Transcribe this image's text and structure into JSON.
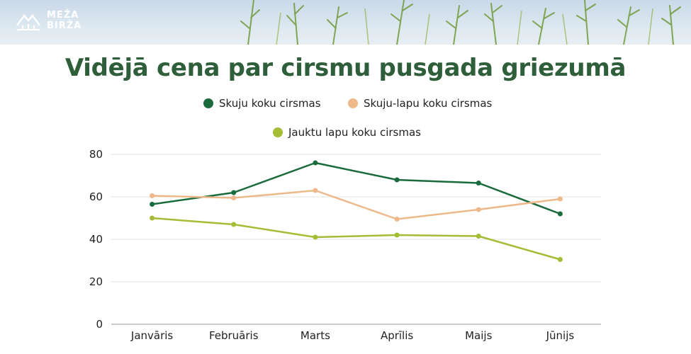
{
  "brand": {
    "line1": "MEŽA",
    "line2": "BIRŽA"
  },
  "colors": {
    "title": "#2e5e3a",
    "grid": "#e3e3e3",
    "axis": "#9a9a9a"
  },
  "chart_data": {
    "type": "line",
    "title": "Vidējā cena par cirsmu pusgada griezumā",
    "categories": [
      "Janvāris",
      "Februāris",
      "Marts",
      "Aprīlis",
      "Maijs",
      "Jūnijs"
    ],
    "ylim": [
      0,
      80
    ],
    "yticks": [
      0,
      20,
      40,
      60,
      80
    ],
    "grid": true,
    "legend_position": "top",
    "series": [
      {
        "name": "Skuju koku cirsmas",
        "color": "#1a6b3c",
        "values": [
          56.5,
          62,
          76,
          68,
          66.5,
          52
        ]
      },
      {
        "name": "Skuju-lapu koku cirsmas",
        "color": "#edb98a",
        "values": [
          60.5,
          59.5,
          63,
          49.5,
          54,
          59
        ]
      },
      {
        "name": "Jauktu lapu koku cirsmas",
        "color": "#a3bd35",
        "values": [
          50,
          47,
          41,
          42,
          41.5,
          30.5
        ]
      }
    ]
  }
}
